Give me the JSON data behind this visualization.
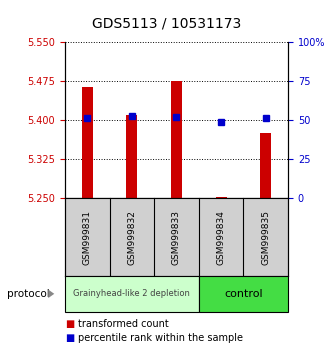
{
  "title": "GDS5113 / 10531173",
  "samples": [
    "GSM999831",
    "GSM999832",
    "GSM999833",
    "GSM999834",
    "GSM999835"
  ],
  "groups": [
    "depletion",
    "depletion",
    "depletion",
    "control",
    "control"
  ],
  "group_labels": [
    "Grainyhead-like 2 depletion",
    "control"
  ],
  "depletion_color": "#ccffcc",
  "control_color": "#44dd44",
  "bar_bottom": 5.25,
  "bar_tops": [
    5.465,
    5.41,
    5.475,
    5.253,
    5.375
  ],
  "percentile_values": [
    5.405,
    5.408,
    5.407,
    5.396,
    5.405
  ],
  "ylim_left": [
    5.25,
    5.55
  ],
  "ylim_right": [
    0,
    100
  ],
  "yticks_left": [
    5.25,
    5.325,
    5.4,
    5.475,
    5.55
  ],
  "yticks_right": [
    0,
    25,
    50,
    75,
    100
  ],
  "bar_color": "#cc0000",
  "dot_color": "#0000cc",
  "bg_color": "#ffffff",
  "left_tick_color": "#cc0000",
  "right_tick_color": "#0000cc",
  "legend_items": [
    "transformed count",
    "percentile rank within the sample"
  ],
  "legend_colors": [
    "#cc0000",
    "#0000cc"
  ],
  "protocol_label": "protocol",
  "figsize": [
    3.33,
    3.54
  ],
  "dpi": 100
}
